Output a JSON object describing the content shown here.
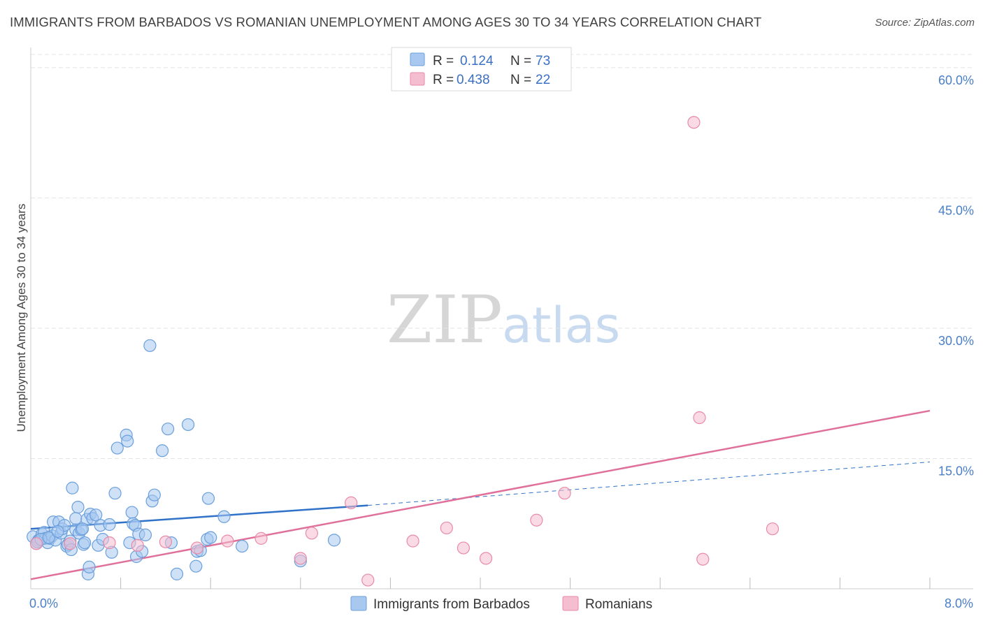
{
  "title": "IMMIGRANTS FROM BARBADOS VS ROMANIAN UNEMPLOYMENT AMONG AGES 30 TO 34 YEARS CORRELATION CHART",
  "source": "Source: ZipAtlas.com",
  "watermark": {
    "zip": "ZIP",
    "atlas": "atlas"
  },
  "colors": {
    "blue_fill": "#a8c8f0",
    "blue_stroke": "#6a9fdc",
    "blue_line": "#2f72c8",
    "pink_fill": "#f5bdd0",
    "pink_stroke": "#e88aa8",
    "pink_line": "#e0709a",
    "grid": "#e4e4e4",
    "tick_text": "#4a7fc8"
  },
  "legend": {
    "entries": [
      {
        "r_label": "R =",
        "r_value": "0.124",
        "n_label": "N =",
        "n_value": "73"
      },
      {
        "r_label": "R =",
        "r_value": "0.438",
        "n_label": "N =",
        "n_value": "22"
      }
    ]
  },
  "chart_data": {
    "type": "scatter",
    "title": "IMMIGRANTS FROM BARBADOS VS ROMANIAN UNEMPLOYMENT AMONG AGES 30 TO 34 YEARS CORRELATION CHART",
    "xlabel": "",
    "ylabel": "Unemployment Among Ages 30 to 34 years",
    "xlim": [
      0,
      8
    ],
    "ylim": [
      0,
      62
    ],
    "x_tick_labels": [
      {
        "value": 0,
        "label": "0.0%"
      },
      {
        "value": 8,
        "label": "8.0%"
      }
    ],
    "y_tick_labels": [
      {
        "value": 15,
        "label": "15.0%"
      },
      {
        "value": 30,
        "label": "30.0%"
      },
      {
        "value": 45,
        "label": "45.0%"
      },
      {
        "value": 60,
        "label": "60.0%"
      }
    ],
    "x_minor_ticks": [
      0.8,
      1.6,
      2.4,
      3.2,
      4.0,
      4.8,
      5.6,
      6.4,
      7.2,
      8.0
    ],
    "grid": true,
    "legend_position": "top-center",
    "series": [
      {
        "name": "Immigrants from Barbados",
        "color": "blue",
        "points": [
          [
            0.02,
            6.0
          ],
          [
            0.05,
            5.2
          ],
          [
            0.07,
            5.6
          ],
          [
            0.1,
            6.3
          ],
          [
            0.12,
            6.5
          ],
          [
            0.13,
            5.8
          ],
          [
            0.15,
            5.3
          ],
          [
            0.17,
            5.8
          ],
          [
            0.19,
            6.1
          ],
          [
            0.2,
            7.7
          ],
          [
            0.22,
            5.6
          ],
          [
            0.25,
            7.7
          ],
          [
            0.27,
            6.4
          ],
          [
            0.28,
            6.9
          ],
          [
            0.3,
            7.3
          ],
          [
            0.32,
            4.9
          ],
          [
            0.33,
            5.1
          ],
          [
            0.35,
            5.5
          ],
          [
            0.36,
            4.5
          ],
          [
            0.37,
            11.6
          ],
          [
            0.4,
            6.8
          ],
          [
            0.4,
            8.1
          ],
          [
            0.42,
            9.4
          ],
          [
            0.43,
            6.4
          ],
          [
            0.45,
            6.8
          ],
          [
            0.47,
            5.1
          ],
          [
            0.48,
            5.3
          ],
          [
            0.5,
            8.0
          ],
          [
            0.51,
            1.7
          ],
          [
            0.52,
            2.5
          ],
          [
            0.53,
            8.6
          ],
          [
            0.55,
            8.1
          ],
          [
            0.58,
            8.5
          ],
          [
            0.6,
            5.0
          ],
          [
            0.62,
            7.3
          ],
          [
            0.64,
            5.7
          ],
          [
            0.7,
            7.4
          ],
          [
            0.72,
            4.2
          ],
          [
            0.75,
            11.0
          ],
          [
            0.77,
            16.2
          ],
          [
            0.85,
            17.7
          ],
          [
            0.86,
            17.0
          ],
          [
            0.88,
            5.3
          ],
          [
            0.9,
            8.8
          ],
          [
            0.91,
            7.5
          ],
          [
            0.93,
            7.3
          ],
          [
            0.94,
            3.7
          ],
          [
            0.96,
            6.3
          ],
          [
            0.99,
            4.3
          ],
          [
            1.02,
            6.2
          ],
          [
            1.06,
            28.0
          ],
          [
            1.08,
            10.1
          ],
          [
            1.1,
            10.8
          ],
          [
            1.17,
            15.9
          ],
          [
            1.22,
            18.4
          ],
          [
            1.25,
            5.3
          ],
          [
            1.3,
            1.7
          ],
          [
            1.4,
            18.9
          ],
          [
            1.47,
            2.6
          ],
          [
            1.48,
            4.3
          ],
          [
            1.51,
            4.4
          ],
          [
            1.57,
            5.7
          ],
          [
            1.6,
            5.9
          ],
          [
            1.58,
            10.4
          ],
          [
            1.72,
            8.3
          ],
          [
            1.88,
            4.9
          ],
          [
            2.4,
            3.2
          ],
          [
            2.7,
            5.6
          ],
          [
            0.06,
            5.4
          ],
          [
            0.09,
            5.7
          ],
          [
            0.16,
            5.9
          ],
          [
            0.24,
            6.6
          ],
          [
            0.46,
            6.9
          ]
        ]
      },
      {
        "name": "Romanians",
        "color": "pink",
        "points": [
          [
            0.05,
            5.2
          ],
          [
            0.35,
            5.2
          ],
          [
            0.7,
            5.3
          ],
          [
            0.95,
            5.0
          ],
          [
            1.2,
            5.4
          ],
          [
            1.48,
            4.7
          ],
          [
            1.75,
            5.5
          ],
          [
            2.05,
            5.8
          ],
          [
            2.4,
            3.5
          ],
          [
            2.5,
            6.4
          ],
          [
            2.85,
            9.9
          ],
          [
            3.0,
            1.0
          ],
          [
            3.4,
            5.5
          ],
          [
            3.7,
            7.0
          ],
          [
            3.85,
            4.7
          ],
          [
            4.05,
            3.5
          ],
          [
            4.5,
            7.9
          ],
          [
            4.75,
            11.0
          ],
          [
            5.9,
            53.7
          ],
          [
            5.95,
            19.7
          ],
          [
            5.98,
            3.4
          ],
          [
            6.6,
            6.9
          ]
        ]
      }
    ],
    "trend_lines": [
      {
        "series": "Immigrants from Barbados",
        "solid_from": [
          0.0,
          6.9
        ],
        "solid_to": [
          3.0,
          9.6
        ],
        "dashed_to": [
          8.0,
          14.6
        ]
      },
      {
        "series": "Romanians",
        "from": [
          0.0,
          1.1
        ],
        "to": [
          8.0,
          20.5
        ]
      }
    ]
  },
  "bottom_legend": [
    "Immigrants from Barbados",
    "Romanians"
  ]
}
